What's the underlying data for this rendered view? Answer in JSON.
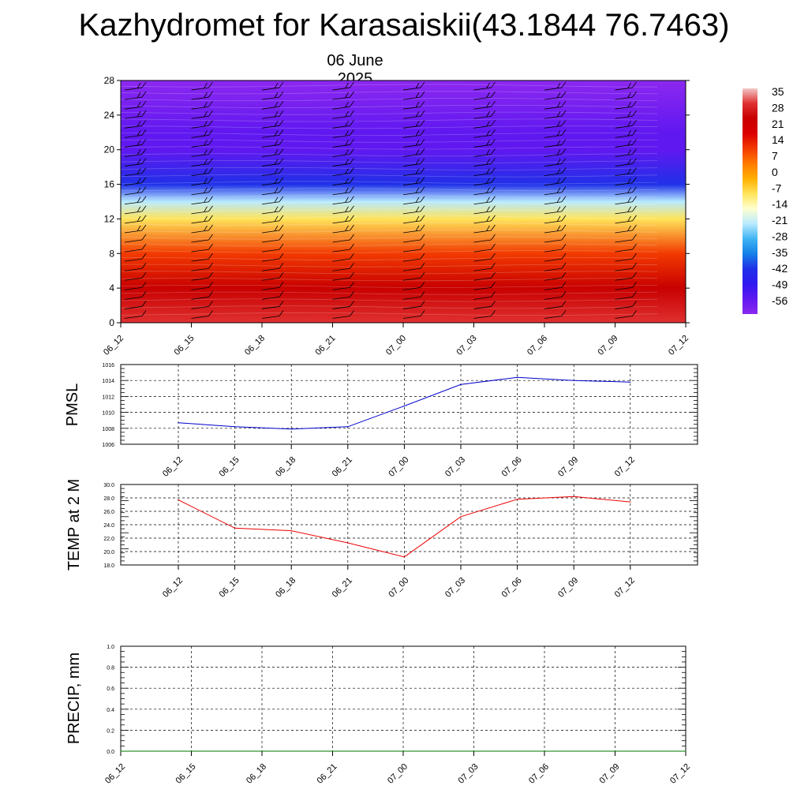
{
  "title": "Kazhydromet for Karasaiskii(43.1844 76.7463)",
  "subtitle": "06 June 2025",
  "chart_data": [
    {
      "type": "heatmap",
      "ylim": [
        0,
        28
      ],
      "yticks": [
        0,
        4,
        8,
        12,
        16,
        20,
        24,
        28
      ],
      "x": [
        "06_12",
        "06_15",
        "06_18",
        "06_21",
        "07_00",
        "07_03",
        "07_06",
        "07_09",
        "07_12"
      ],
      "colorbar": {
        "labels": [
          "35",
          "28",
          "21",
          "14",
          "7",
          "0",
          "-7",
          "-14",
          "-21",
          "-28",
          "-35",
          "-42",
          "-49",
          "-56"
        ],
        "colors": [
          "#f2c8c8",
          "#e03030",
          "#c80000",
          "#dc0000",
          "#f23a00",
          "#ff7a00",
          "#ffb000",
          "#ffe45a",
          "#ffffd0",
          "#b8eaff",
          "#40b4f4",
          "#1480e8",
          "#2030e8",
          "#3018f0",
          "#6018f0",
          "#8c28f0"
        ]
      },
      "profile": [
        {
          "alt": 0,
          "value": 30
        },
        {
          "alt": 4,
          "value": 24
        },
        {
          "alt": 8,
          "value": 14
        },
        {
          "alt": 12,
          "value": -8
        },
        {
          "alt": 14,
          "value": -22
        },
        {
          "alt": 16,
          "value": -40
        },
        {
          "alt": 20,
          "value": -52
        },
        {
          "alt": 22,
          "value": -55
        },
        {
          "alt": 28,
          "value": -58
        }
      ]
    },
    {
      "type": "line",
      "ylabel": "PMSL",
      "x": [
        "06_12",
        "06_15",
        "06_18",
        "06_21",
        "07_00",
        "07_03",
        "07_06",
        "07_09",
        "07_12"
      ],
      "ylim": [
        1006,
        1016
      ],
      "yticks": [
        "1006",
        "1008",
        "1010",
        "1012",
        "1014",
        "1016"
      ],
      "series": [
        {
          "values": [
            1008.7,
            1008.2,
            1007.9,
            1008.2,
            1010.8,
            1013.5,
            1014.4,
            1014.0,
            1013.8
          ],
          "color": "#0000cc"
        }
      ]
    },
    {
      "type": "line",
      "ylabel": "TEMP at 2 M",
      "x": [
        "06_12",
        "06_15",
        "06_18",
        "06_21",
        "07_00",
        "07_03",
        "07_06",
        "07_09",
        "07_12"
      ],
      "ylim": [
        18,
        30
      ],
      "yticks": [
        "18.0",
        "20.0",
        "22.0",
        "24.0",
        "26.0",
        "28.0",
        "30.0"
      ],
      "series": [
        {
          "values": [
            27.7,
            23.5,
            23.1,
            21.3,
            19.2,
            25.2,
            27.8,
            28.2,
            27.4
          ],
          "color": "#ee0000"
        }
      ]
    },
    {
      "type": "line",
      "ylabel": "PRECIP, mm",
      "x": [
        "06_12",
        "06_15",
        "06_18",
        "06_21",
        "07_00",
        "07_03",
        "07_06",
        "07_09",
        "07_12"
      ],
      "ylim": [
        0,
        1
      ],
      "yticks": [
        "0.0",
        "0.2",
        "0.4",
        "0.6",
        "0.8",
        "1.0"
      ],
      "series": [
        {
          "values": [
            0,
            0,
            0,
            0,
            0,
            0,
            0,
            0,
            0
          ],
          "color": "#007700"
        }
      ]
    }
  ]
}
